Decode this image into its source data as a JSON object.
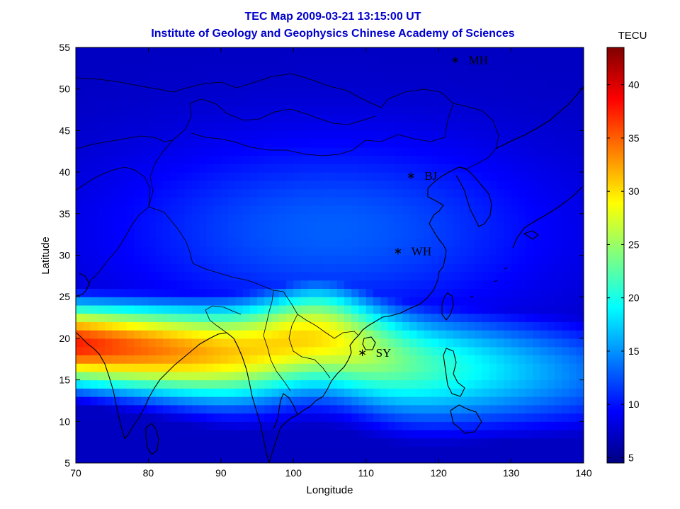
{
  "chart_data": {
    "type": "heatmap",
    "title": "TEC Map 2009-03-21 13:15:00 UT",
    "subtitle": "Institute of Geology and Geophysics Chinese Academy of Sciences",
    "xlabel": "Longitude",
    "ylabel": "Latitude",
    "xlim": [
      70,
      140
    ],
    "ylim": [
      5,
      55
    ],
    "xticks": [
      70,
      80,
      90,
      100,
      110,
      120,
      130,
      140
    ],
    "yticks": [
      5,
      10,
      15,
      20,
      25,
      30,
      35,
      40,
      45,
      50,
      55
    ],
    "colorbar": {
      "label": "TECU",
      "range": [
        4.5,
        43.5
      ],
      "ticks": [
        5,
        10,
        15,
        20,
        25,
        30,
        35,
        40
      ],
      "colormap": "jet"
    },
    "stations": [
      {
        "name": "MH",
        "lon": 122.3,
        "lat": 53.5
      },
      {
        "name": "BJ",
        "lon": 116.2,
        "lat": 39.6
      },
      {
        "name": "WH",
        "lon": 114.4,
        "lat": 30.5
      },
      {
        "name": "SY",
        "lon": 109.5,
        "lat": 18.3
      }
    ]
  }
}
